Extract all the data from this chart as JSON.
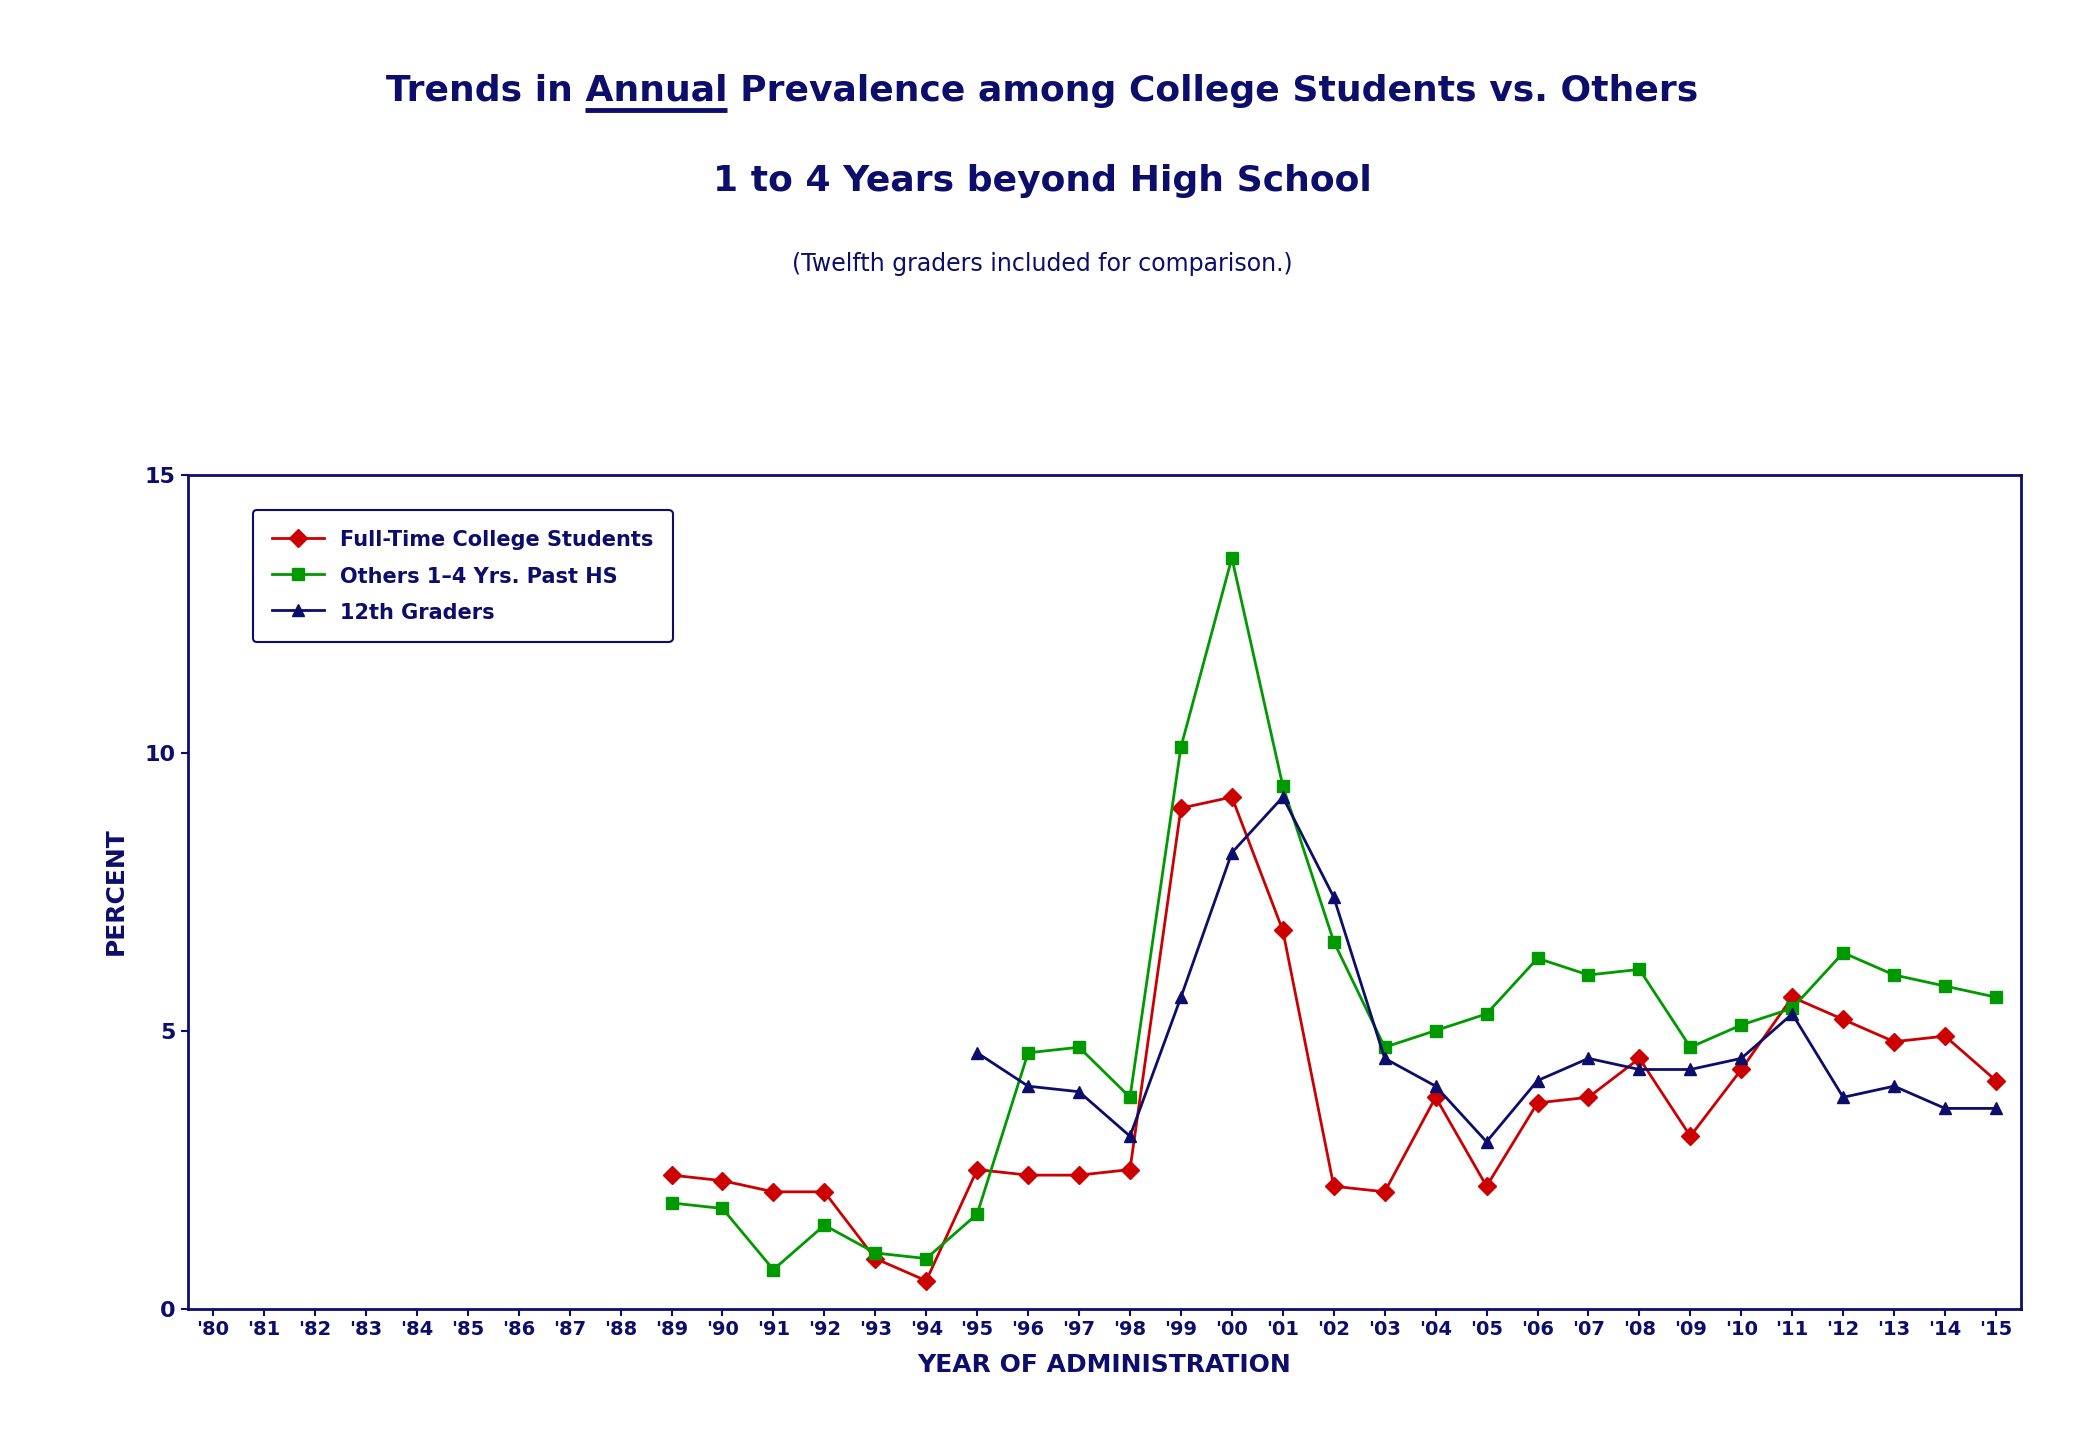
{
  "title_line1": "Trends in Annual Prevalence among College Students vs. Others",
  "title_annual_word": "Annual",
  "title_line2": "1 to 4 Years beyond High School",
  "subtitle": "(Twelfth graders included for comparison.)",
  "xlabel": "YEAR OF ADMINISTRATION",
  "ylabel": "PERCENT",
  "title_color": "#0d0d6b",
  "text_color": "#0d0d6b",
  "background_color": "#ffffff",
  "ylim": [
    0,
    15
  ],
  "yticks": [
    0,
    5,
    10,
    15
  ],
  "years": [
    1980,
    1981,
    1982,
    1983,
    1984,
    1985,
    1986,
    1987,
    1988,
    1989,
    1990,
    1991,
    1992,
    1993,
    1994,
    1995,
    1996,
    1997,
    1998,
    1999,
    2000,
    2001,
    2002,
    2003,
    2004,
    2005,
    2006,
    2007,
    2008,
    2009,
    2010,
    2011,
    2012,
    2013,
    2014,
    2015
  ],
  "xtick_labels": [
    "'80",
    "'81",
    "'82",
    "'83",
    "'84",
    "'85",
    "'86",
    "'87",
    "'88",
    "'89",
    "'90",
    "'91",
    "'92",
    "'93",
    "'94",
    "'95",
    "'96",
    "'97",
    "'98",
    "'99",
    "'00",
    "'01",
    "'02",
    "'03",
    "'04",
    "'05",
    "'06",
    "'07",
    "'08",
    "'09",
    "'10",
    "'11",
    "'12",
    "'13",
    "'14",
    "'15"
  ],
  "college_students": [
    null,
    null,
    null,
    null,
    null,
    null,
    null,
    null,
    null,
    2.4,
    2.3,
    2.1,
    2.1,
    0.9,
    0.5,
    2.5,
    2.4,
    2.4,
    2.5,
    9.0,
    9.2,
    6.8,
    2.2,
    2.1,
    3.8,
    2.2,
    3.7,
    3.8,
    4.5,
    3.1,
    4.3,
    5.6,
    5.2,
    4.8,
    4.9,
    4.1
  ],
  "others": [
    null,
    null,
    null,
    null,
    null,
    null,
    null,
    null,
    null,
    1.9,
    1.8,
    0.7,
    1.5,
    1.0,
    0.9,
    1.7,
    4.6,
    4.7,
    3.8,
    10.1,
    13.5,
    9.4,
    6.6,
    4.7,
    5.0,
    5.3,
    6.3,
    6.0,
    6.1,
    4.7,
    5.1,
    5.4,
    6.4,
    6.0,
    5.8,
    5.6
  ],
  "twelfth_graders": [
    null,
    null,
    null,
    null,
    null,
    null,
    null,
    null,
    null,
    null,
    null,
    null,
    null,
    null,
    null,
    4.6,
    4.0,
    3.9,
    3.1,
    5.6,
    8.2,
    9.2,
    7.4,
    4.5,
    4.0,
    3.0,
    4.1,
    4.5,
    4.3,
    4.3,
    4.5,
    5.3,
    3.8,
    4.0,
    3.6,
    3.6
  ],
  "college_color": "#cc0000",
  "others_color": "#009900",
  "twelfth_color": "#0d0d6b",
  "line_width": 2.0,
  "marker_size": 9,
  "title_fontsize": 26,
  "subtitle_fontsize": 17,
  "axis_label_fontsize": 18,
  "tick_fontsize": 14,
  "legend_fontsize": 15
}
